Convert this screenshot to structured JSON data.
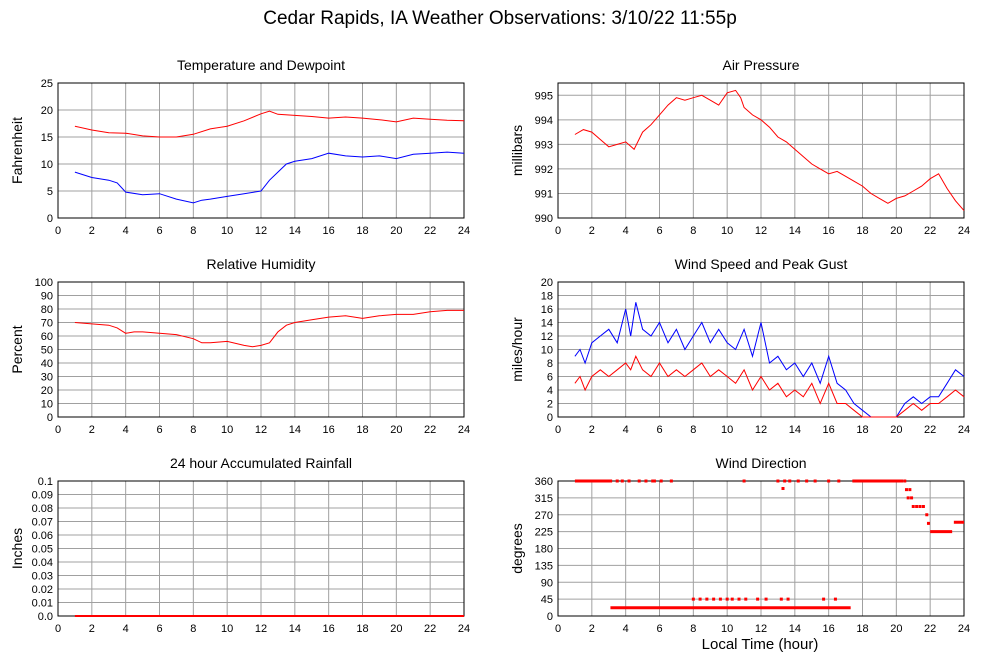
{
  "title": "Cedar Rapids, IA Weather Observations: 3/10/22 11:55p",
  "xlabel": "Local Time (hour)",
  "colors": {
    "red": "#ff0000",
    "blue": "#0000ff",
    "grid": "#a0a0a0"
  },
  "chart_data": [
    {
      "id": "temp",
      "type": "line",
      "title": "Temperature and Dewpoint",
      "xlabel": "",
      "ylabel": "Fahrenheit",
      "xlim": [
        0,
        24
      ],
      "ylim": [
        0,
        25
      ],
      "xticks": [
        0,
        2,
        4,
        6,
        8,
        10,
        12,
        14,
        16,
        18,
        20,
        22,
        24
      ],
      "yticks": [
        0,
        5,
        10,
        15,
        20,
        25
      ],
      "series": [
        {
          "color": "#ff0000",
          "x": [
            1,
            2,
            3,
            4,
            5,
            6,
            7,
            8,
            9,
            10,
            11,
            12,
            12.5,
            13,
            14,
            15,
            16,
            17,
            18,
            19,
            20,
            21,
            22,
            23,
            24
          ],
          "y": [
            17,
            16.3,
            15.8,
            15.7,
            15.2,
            15,
            15,
            15.5,
            16.5,
            17,
            18,
            19.3,
            19.8,
            19.2,
            19,
            18.8,
            18.5,
            18.7,
            18.5,
            18.2,
            17.8,
            18.5,
            18.3,
            18.1,
            18
          ]
        },
        {
          "color": "#0000ff",
          "x": [
            1,
            2,
            3,
            3.5,
            4,
            5,
            6,
            7,
            8,
            8.5,
            9,
            10,
            11,
            12,
            12.5,
            13,
            13.5,
            14,
            15,
            16,
            17,
            18,
            19,
            20,
            21,
            22,
            23,
            24
          ],
          "y": [
            8.5,
            7.5,
            7,
            6.5,
            4.8,
            4.3,
            4.5,
            3.5,
            2.8,
            3.3,
            3.5,
            4,
            4.5,
            5,
            7,
            8.5,
            10,
            10.5,
            11,
            12,
            11.5,
            11.3,
            11.5,
            11,
            11.8,
            12,
            12.2,
            12
          ]
        }
      ]
    },
    {
      "id": "pressure",
      "type": "line",
      "title": "Air Pressure",
      "xlabel": "",
      "ylabel": "millibars",
      "xlim": [
        0,
        24
      ],
      "ylim": [
        990,
        995.5
      ],
      "xticks": [
        0,
        2,
        4,
        6,
        8,
        10,
        12,
        14,
        16,
        18,
        20,
        22,
        24
      ],
      "yticks": [
        990,
        991,
        992,
        993,
        994,
        995
      ],
      "series": [
        {
          "color": "#ff0000",
          "x": [
            1,
            1.5,
            2,
            2.5,
            3,
            3.5,
            4,
            4.5,
            5,
            5.5,
            6,
            6.5,
            7,
            7.5,
            8,
            8.5,
            9,
            9.5,
            10,
            10.5,
            10.8,
            11,
            11.5,
            12,
            12.5,
            13,
            13.5,
            14,
            14.5,
            15,
            15.5,
            16,
            16.5,
            17,
            17.5,
            18,
            18.5,
            19,
            19.5,
            20,
            20.5,
            21,
            21.5,
            22,
            22.5,
            23,
            23.5,
            24
          ],
          "y": [
            993.4,
            993.6,
            993.5,
            993.2,
            992.9,
            993,
            993.1,
            992.8,
            993.5,
            993.8,
            994.2,
            994.6,
            994.9,
            994.8,
            994.9,
            995,
            994.8,
            994.6,
            995.1,
            995.2,
            994.9,
            994.5,
            994.2,
            994,
            993.7,
            993.3,
            993.1,
            992.8,
            992.5,
            992.2,
            992,
            991.8,
            991.9,
            991.7,
            991.5,
            991.3,
            991,
            990.8,
            990.6,
            990.8,
            990.9,
            991.1,
            991.3,
            991.6,
            991.8,
            991.2,
            990.7,
            990.3
          ]
        }
      ]
    },
    {
      "id": "rh",
      "type": "line",
      "title": "Relative Humidity",
      "xlabel": "",
      "ylabel": "Percent",
      "xlim": [
        0,
        24
      ],
      "ylim": [
        0,
        100
      ],
      "xticks": [
        0,
        2,
        4,
        6,
        8,
        10,
        12,
        14,
        16,
        18,
        20,
        22,
        24
      ],
      "yticks": [
        0,
        10,
        20,
        30,
        40,
        50,
        60,
        70,
        80,
        90,
        100
      ],
      "series": [
        {
          "color": "#ff0000",
          "x": [
            1,
            2,
            3,
            3.5,
            4,
            4.5,
            5,
            6,
            7,
            8,
            8.5,
            9,
            10,
            11,
            11.5,
            12,
            12.5,
            13,
            13.5,
            14,
            15,
            16,
            17,
            18,
            19,
            20,
            21,
            22,
            23,
            24
          ],
          "y": [
            70,
            69,
            68,
            66,
            62,
            63,
            63,
            62,
            61,
            58,
            55,
            55,
            56,
            53,
            52,
            53,
            55,
            63,
            68,
            70,
            72,
            74,
            75,
            73,
            75,
            76,
            76,
            78,
            79,
            79
          ]
        }
      ]
    },
    {
      "id": "wind",
      "type": "line",
      "title": "Wind Speed and Peak Gust",
      "xlabel": "",
      "ylabel": "miles/hour",
      "xlim": [
        0,
        24
      ],
      "ylim": [
        0,
        20
      ],
      "xticks": [
        0,
        2,
        4,
        6,
        8,
        10,
        12,
        14,
        16,
        18,
        20,
        22,
        24
      ],
      "yticks": [
        0,
        2,
        4,
        6,
        8,
        10,
        12,
        14,
        16,
        18,
        20
      ],
      "series": [
        {
          "color": "#0000ff",
          "x": [
            1,
            1.3,
            1.6,
            2,
            2.5,
            3,
            3.5,
            4,
            4.3,
            4.6,
            5,
            5.5,
            6,
            6.5,
            7,
            7.5,
            8,
            8.5,
            9,
            9.5,
            10,
            10.5,
            11,
            11.5,
            12,
            12.5,
            13,
            13.5,
            14,
            14.5,
            15,
            15.5,
            16,
            16.5,
            17,
            17.5,
            18,
            18.5,
            19,
            19.5,
            20,
            20.5,
            21,
            21.5,
            22,
            22.5,
            23,
            23.5,
            24
          ],
          "y": [
            9,
            10,
            8,
            11,
            12,
            13,
            11,
            16,
            12,
            17,
            13,
            12,
            14,
            11,
            13,
            10,
            12,
            14,
            11,
            13,
            11,
            10,
            13,
            9,
            14,
            8,
            9,
            7,
            8,
            6,
            8,
            5,
            9,
            5,
            4,
            2,
            1,
            0,
            0,
            0,
            0,
            2,
            3,
            2,
            3,
            3,
            5,
            7,
            6
          ]
        },
        {
          "color": "#ff0000",
          "x": [
            1,
            1.3,
            1.6,
            2,
            2.5,
            3,
            3.5,
            4,
            4.3,
            4.6,
            5,
            5.5,
            6,
            6.5,
            7,
            7.5,
            8,
            8.5,
            9,
            9.5,
            10,
            10.5,
            11,
            11.5,
            12,
            12.5,
            13,
            13.5,
            14,
            14.5,
            15,
            15.5,
            16,
            16.5,
            17,
            17.5,
            18,
            18.5,
            19,
            19.5,
            20,
            20.5,
            21,
            21.5,
            22,
            22.5,
            23,
            23.5,
            24
          ],
          "y": [
            5,
            6,
            4,
            6,
            7,
            6,
            7,
            8,
            7,
            9,
            7,
            6,
            8,
            6,
            7,
            6,
            7,
            8,
            6,
            7,
            6,
            5,
            7,
            4,
            6,
            4,
            5,
            3,
            4,
            3,
            5,
            2,
            5,
            2,
            2,
            1,
            0,
            0,
            0,
            0,
            0,
            1,
            2,
            1,
            2,
            2,
            3,
            4,
            3
          ]
        }
      ]
    },
    {
      "id": "rain",
      "type": "line",
      "title": "24 hour Accumulated Rainfall",
      "xlabel": "",
      "ylabel": "Inches",
      "xlim": [
        0,
        24
      ],
      "ylim": [
        0,
        0.1
      ],
      "xticks": [
        0,
        2,
        4,
        6,
        8,
        10,
        12,
        14,
        16,
        18,
        20,
        22,
        24
      ],
      "yticks": [
        0.0,
        0.01,
        0.02,
        0.03,
        0.04,
        0.05,
        0.06,
        0.07,
        0.08,
        0.09,
        0.1
      ],
      "ytick_labels": [
        "0.0",
        "0.01",
        "0.02",
        "0.03",
        "0.04",
        "0.05",
        "0.06",
        "0.07",
        "0.08",
        "0.09",
        "0.1"
      ],
      "series": [
        {
          "color": "#ff0000",
          "x": [
            1,
            24
          ],
          "y": [
            0,
            0
          ]
        }
      ]
    },
    {
      "id": "wdir",
      "type": "scatter",
      "title": "Wind Direction",
      "xlabel": "",
      "ylabel": "degrees",
      "xlim": [
        0,
        24
      ],
      "ylim": [
        0,
        360
      ],
      "xticks": [
        0,
        2,
        4,
        6,
        8,
        10,
        12,
        14,
        16,
        18,
        20,
        22,
        24
      ],
      "yticks": [
        0,
        45,
        90,
        135,
        180,
        225,
        270,
        315,
        360
      ],
      "series": [
        {
          "color": "#ff0000",
          "segments": [
            {
              "x_start": 1.0,
              "x_end": 3.2,
              "y": 360
            },
            {
              "x_start": 3.1,
              "x_end": 17.3,
              "y": 22
            },
            {
              "x_start": 17.4,
              "x_end": 20.4,
              "y": 360
            },
            {
              "x_start": 22.0,
              "x_end": 23.3,
              "y": 225
            },
            {
              "x_start": 23.4,
              "x_end": 24.0,
              "y": 250
            }
          ],
          "points": [
            [
              3.5,
              360
            ],
            [
              3.8,
              360
            ],
            [
              4.2,
              360
            ],
            [
              4.8,
              360
            ],
            [
              5.2,
              360
            ],
            [
              5.6,
              360
            ],
            [
              5.7,
              360
            ],
            [
              6.1,
              360
            ],
            [
              6.7,
              360
            ],
            [
              8.0,
              45
            ],
            [
              8.4,
              45
            ],
            [
              8.8,
              45
            ],
            [
              9.2,
              45
            ],
            [
              9.6,
              45
            ],
            [
              10.0,
              45
            ],
            [
              10.3,
              45
            ],
            [
              10.7,
              45
            ],
            [
              11.1,
              45
            ],
            [
              11.8,
              45
            ],
            [
              12.3,
              45
            ],
            [
              13.2,
              45
            ],
            [
              13.6,
              45
            ],
            [
              15.7,
              45
            ],
            [
              16.4,
              45
            ],
            [
              11.0,
              360
            ],
            [
              13.0,
              360
            ],
            [
              13.4,
              360
            ],
            [
              13.7,
              360
            ],
            [
              14.2,
              360
            ],
            [
              14.7,
              360
            ],
            [
              15.2,
              360
            ],
            [
              16.0,
              360
            ],
            [
              16.6,
              360
            ],
            [
              13.3,
              340
            ],
            [
              20.5,
              360
            ],
            [
              20.6,
              337
            ],
            [
              20.8,
              337
            ],
            [
              20.7,
              315
            ],
            [
              20.9,
              315
            ],
            [
              21.0,
              292
            ],
            [
              21.2,
              292
            ],
            [
              21.4,
              292
            ],
            [
              21.6,
              292
            ],
            [
              21.8,
              270
            ],
            [
              21.9,
              247
            ]
          ]
        }
      ]
    }
  ]
}
